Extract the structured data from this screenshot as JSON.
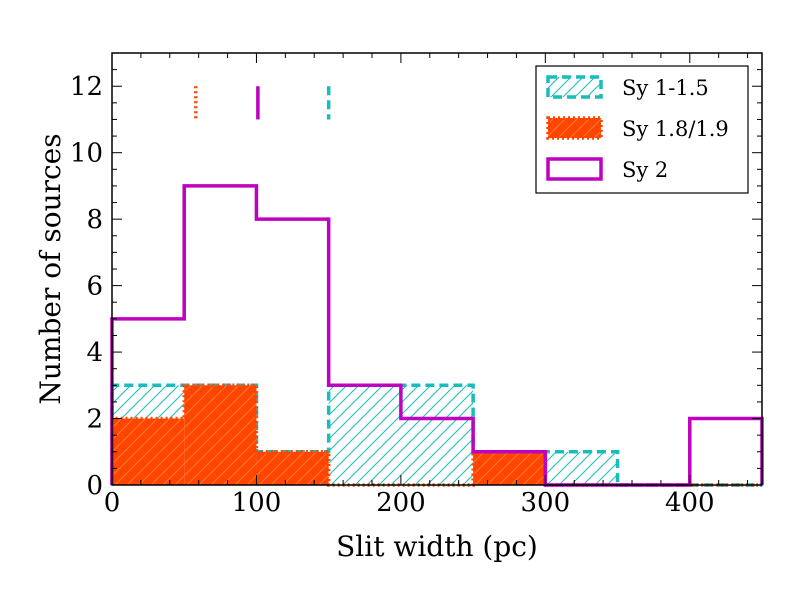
{
  "chart_data": {
    "type": "histogram",
    "xlabel": "Slit width (pc)",
    "ylabel": "Number of sources",
    "xlim": [
      0,
      450
    ],
    "ylim": [
      0,
      13
    ],
    "x_ticks": [
      0,
      100,
      200,
      300,
      400
    ],
    "y_ticks": [
      0,
      2,
      4,
      6,
      8,
      10,
      12
    ],
    "bin_edges": [
      0,
      50,
      100,
      150,
      200,
      250,
      300,
      350,
      400,
      450
    ],
    "legend_position": "top-right",
    "series": [
      {
        "name": "Sy 1-1.5",
        "counts": [
          3,
          3,
          1,
          3,
          3,
          1,
          1,
          0,
          0
        ],
        "color": "#17bcbc",
        "style": "hatched-dashed",
        "median": 150
      },
      {
        "name": "Sy 1.8/1.9",
        "counts": [
          2,
          3,
          1,
          0,
          0,
          1,
          0,
          0,
          0
        ],
        "color": "#ff4500",
        "style": "filled-dotted",
        "median": 58
      },
      {
        "name": "Sy 2",
        "counts": [
          5,
          9,
          8,
          3,
          2,
          1,
          0,
          0,
          2
        ],
        "color": "#c000c0",
        "style": "solid-step",
        "median": 101
      }
    ]
  }
}
